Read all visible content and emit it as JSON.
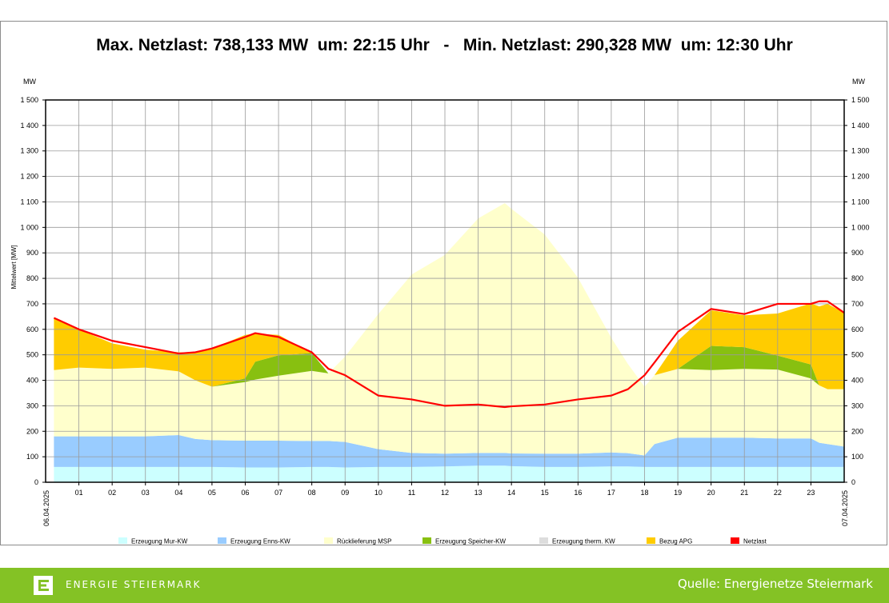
{
  "chart_data": {
    "type": "area",
    "title": "Max. Netzlast: 738,133 MW  um: 22:15 Uhr   -   Min. Netzlast: 290,328 MW  um: 12:30 Uhr",
    "y_unit_left": "MW",
    "y_unit_right": "MW",
    "ylabel": "Mittelwert [MW]",
    "ylim": [
      0,
      1500
    ],
    "yticks": [
      0,
      100,
      200,
      300,
      400,
      500,
      600,
      700,
      800,
      900,
      1000,
      1100,
      1200,
      1300,
      1400,
      1500
    ],
    "ytick_labels": [
      "0",
      "100",
      "200",
      "300",
      "400",
      "500",
      "600",
      "700",
      "800",
      "900",
      "1 000",
      "1 100",
      "1 200",
      "1 300",
      "1 400",
      "1 500"
    ],
    "xlim": [
      0,
      24
    ],
    "xticks": [
      1,
      2,
      3,
      4,
      5,
      6,
      7,
      8,
      9,
      10,
      11,
      12,
      13,
      14,
      15,
      16,
      17,
      18,
      19,
      20,
      21,
      22,
      23
    ],
    "xtick_labels": [
      "01",
      "02",
      "03",
      "04",
      "05",
      "06",
      "07",
      "08",
      "09",
      "10",
      "11",
      "12",
      "13",
      "14",
      "15",
      "16",
      "17",
      "18",
      "19",
      "20",
      "21",
      "22",
      "23"
    ],
    "date_start": "06.04.2025",
    "date_end": "07.04.2025",
    "grid": true,
    "legend_position": "bottom",
    "x": [
      0.25,
      1,
      2,
      3,
      4,
      4.5,
      5,
      6,
      6.3,
      7,
      8,
      8.5,
      9,
      10,
      11,
      12,
      13,
      13.8,
      14,
      15,
      16,
      17,
      17.5,
      18,
      18.3,
      19,
      20,
      21,
      22,
      23,
      23.25,
      23.5,
      24
    ],
    "series": [
      {
        "name": "Erzeugung Mur-KW",
        "color": "#ccffff",
        "values": [
          60,
          60,
          60,
          60,
          60,
          60,
          60,
          58,
          58,
          58,
          60,
          60,
          58,
          60,
          60,
          62,
          65,
          65,
          63,
          60,
          60,
          62,
          62,
          60,
          60,
          60,
          60,
          60,
          60,
          60,
          60,
          60,
          60
        ]
      },
      {
        "name": "Erzeugung Enns-KW",
        "color": "#99ccff",
        "values": [
          120,
          120,
          120,
          120,
          125,
          110,
          105,
          105,
          105,
          105,
          102,
          102,
          100,
          70,
          55,
          50,
          50,
          50,
          50,
          52,
          52,
          55,
          52,
          45,
          90,
          115,
          115,
          115,
          112,
          112,
          95,
          90,
          80
        ]
      },
      {
        "name": "Rücklieferung MSP",
        "color": "#ffffcc",
        "values": [
          260,
          270,
          265,
          270,
          250,
          230,
          210,
          230,
          240,
          255,
          275,
          265,
          335,
          530,
          700,
          780,
          920,
          980,
          960,
          860,
          690,
          450,
          350,
          270,
          270,
          270,
          265,
          270,
          270,
          235,
          225,
          215,
          225
        ]
      },
      {
        "name": "Erzeugung Speicher-KW",
        "color": "#88c010",
        "values": [
          0,
          0,
          0,
          0,
          0,
          0,
          0,
          15,
          70,
          80,
          70,
          0,
          0,
          0,
          0,
          0,
          0,
          0,
          0,
          0,
          0,
          0,
          0,
          0,
          0,
          0,
          95,
          85,
          55,
          55,
          0,
          0,
          0
        ]
      },
      {
        "name": "Erzeugung therm. KW",
        "color": "#dddddd",
        "values": [
          0,
          0,
          0,
          0,
          0,
          0,
          0,
          0,
          0,
          0,
          0,
          0,
          0,
          0,
          0,
          0,
          0,
          0,
          0,
          0,
          0,
          0,
          0,
          0,
          0,
          0,
          0,
          0,
          0,
          0,
          0,
          0,
          0
        ]
      },
      {
        "name": "Bezug APG",
        "color": "#ffcc00",
        "values": [
          205,
          150,
          100,
          70,
          75,
          110,
          150,
          170,
          110,
          80,
          0,
          0,
          0,
          0,
          0,
          0,
          0,
          0,
          0,
          0,
          0,
          0,
          0,
          0,
          0,
          110,
          140,
          125,
          165,
          240,
          310,
          335,
          300
        ]
      },
      {
        "name": "Netzlast",
        "color": "#ff0000",
        "values": [
          645,
          600,
          555,
          530,
          505,
          510,
          525,
          570,
          585,
          570,
          510,
          445,
          420,
          340,
          325,
          300,
          305,
          295,
          298,
          305,
          325,
          340,
          365,
          420,
          470,
          590,
          680,
          660,
          700,
          700,
          710,
          710,
          665
        ]
      }
    ]
  },
  "footer": {
    "brand_name": "ENERGIE STEIERMARK",
    "source": "Quelle: Energienetze Steiermark",
    "background": "#84c225"
  }
}
